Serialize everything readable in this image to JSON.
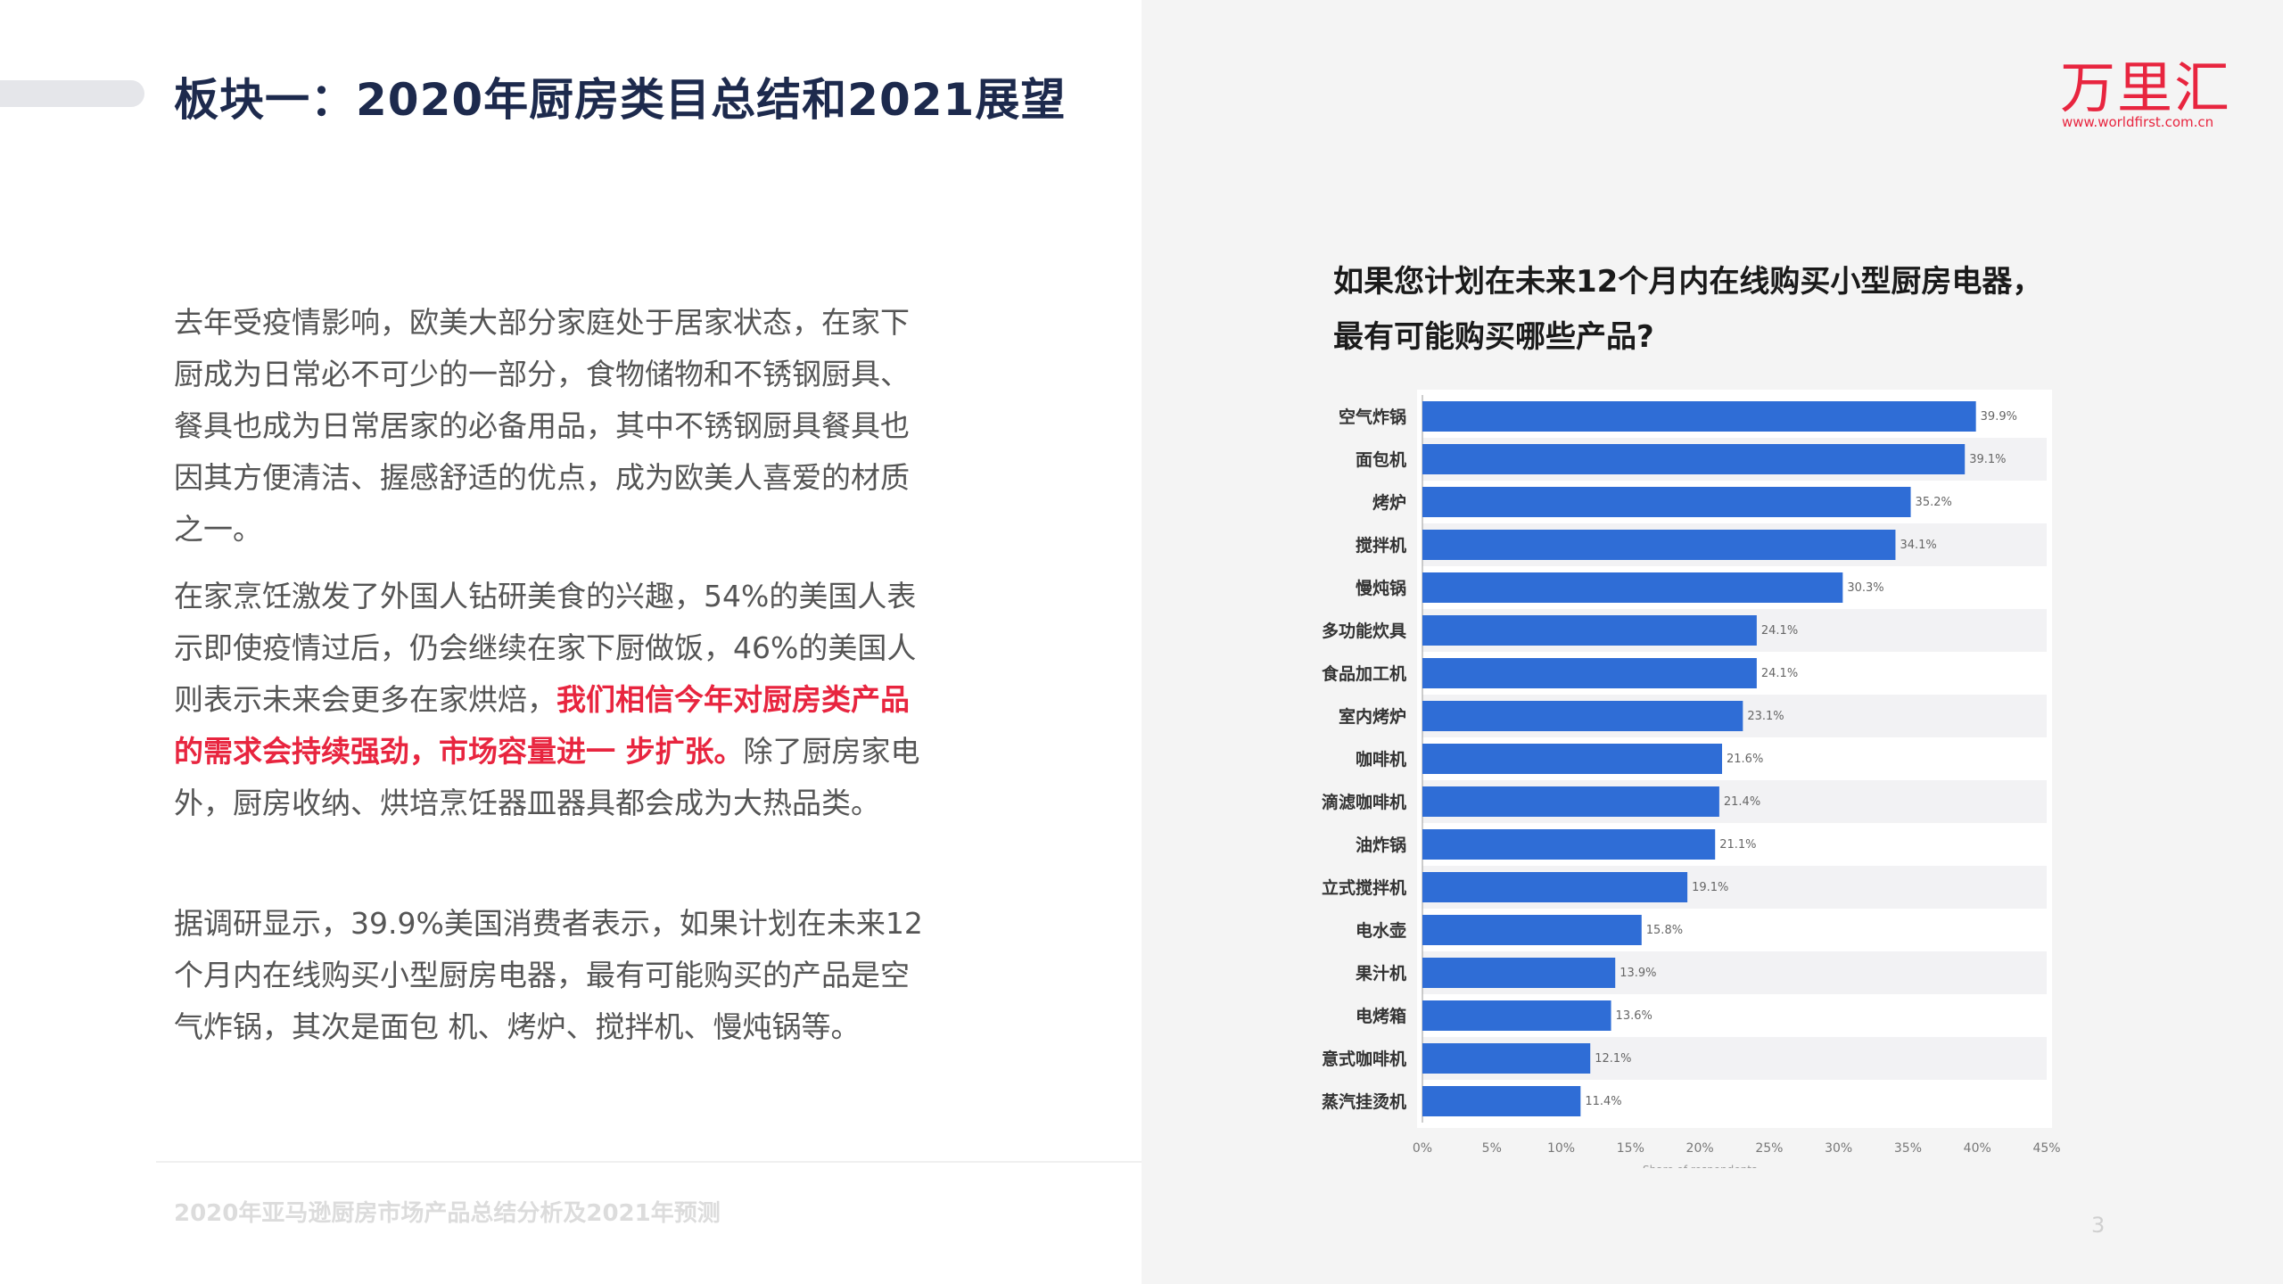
{
  "header": {
    "title": "板块一：2020年厨房类目总结和2021展望"
  },
  "brand": {
    "name": "万里汇",
    "url": "www.worldfirst.com.cn",
    "color": "#e8253f"
  },
  "content": {
    "p1": "去年受疫情影响，欧美大部分家庭处于居家状态，在家下厨成为日常必不可少的一部分，食物储物和不锈钢厨具、餐具也成为日常居家的必备用品，其中不锈钢厨具餐具也因其方便清洁、握感舒适的优点，成为欧美人喜爱的材质之一。",
    "p2_start": "在家烹饪激发了外国人钻研美食的兴趣，54%的美国人表示即使疫情过后，仍会继续在家下厨做饭，46%的美国人则表示未来会更多在家烘焙，",
    "p2_highlight": "我们相信今年对厨房类产品的需求会持续强劲，市场容量进一 步扩张。",
    "p2_end": "除了厨房家电外，厨房收纳、烘培烹饪器皿器具都会成为大热品类。",
    "p3": "据调研显示，39.9%美国消费者表示，如果计划在未来12个月内在线购买小型厨房电器，最有可能购买的产品是空气炸锅，其次是面包 机、烤炉、搅拌机、慢炖锅等。"
  },
  "chart_heading": {
    "line1": "如果您计划在未来12个月内在线购买小型厨房电器，",
    "line2": "最有可能购买哪些产品?"
  },
  "chart_data": {
    "type": "bar",
    "orientation": "horizontal",
    "categories": [
      "空气炸锅",
      "面包机",
      "烤炉",
      "搅拌机",
      "慢炖锅",
      "多功能炊具",
      "食品加工机",
      "室内烤炉",
      "咖啡机",
      "滴滤咖啡机",
      "油炸锅",
      "立式搅拌机",
      "电水壶",
      "果汁机",
      "电烤箱",
      "意式咖啡机",
      "蒸汽挂烫机"
    ],
    "values": [
      39.9,
      39.1,
      35.2,
      34.1,
      30.3,
      24.1,
      24.1,
      23.1,
      21.6,
      21.4,
      21.1,
      19.1,
      15.8,
      13.9,
      13.6,
      12.1,
      11.4
    ],
    "value_labels": [
      "39.9%",
      "39.1%",
      "35.2%",
      "34.1%",
      "30.3%",
      "24.1%",
      "24.1%",
      "23.1%",
      "21.6%",
      "21.4%",
      "21.1%",
      "19.1%",
      "15.8%",
      "13.9%",
      "13.6%",
      "12.1%",
      "11.4%"
    ],
    "xticks": [
      "0%",
      "5%",
      "10%",
      "15%",
      "20%",
      "25%",
      "30%",
      "35%",
      "40%",
      "45%"
    ],
    "xlim": [
      0,
      45
    ],
    "xlabel": "Share of respondents",
    "bar_color": "#2f6dd6",
    "grid": "alternating row stripes"
  },
  "footer": {
    "text": "2020年亚马逊厨房市场产品总结分析及2021年预测",
    "page": "3"
  }
}
